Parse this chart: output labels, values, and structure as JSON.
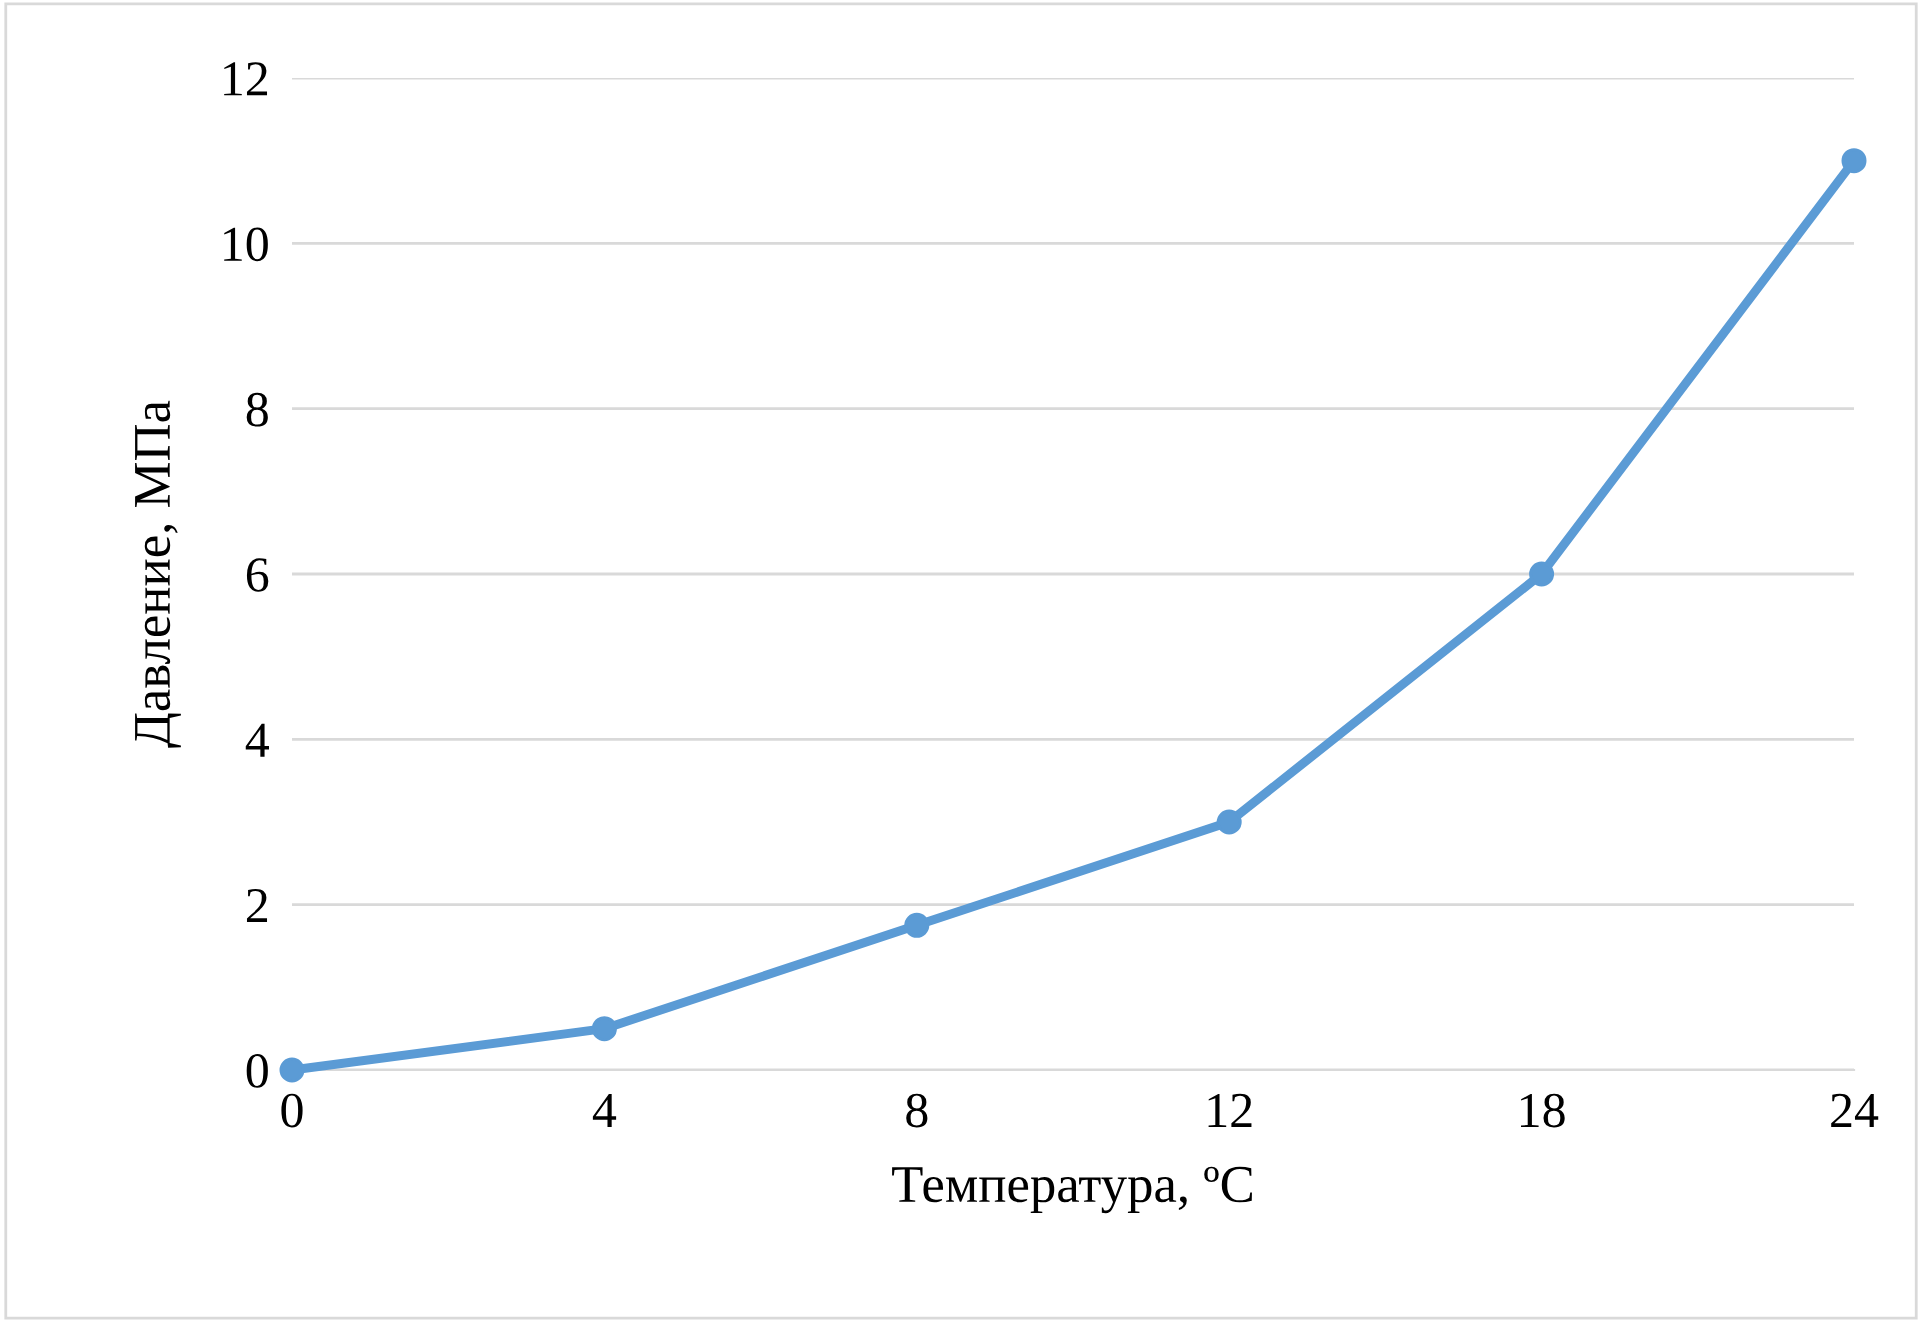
{
  "chart_data": {
    "type": "line",
    "xlabel": "Температура, ºC",
    "ylabel": "Давление, МПа",
    "categories": [
      "0",
      "4",
      "8",
      "12",
      "18",
      "24"
    ],
    "series": [
      {
        "color": "#5b9bd5",
        "values": [
          0,
          0.5,
          1.75,
          3,
          6,
          11
        ]
      }
    ],
    "ylim": [
      0,
      12
    ],
    "yticks": [
      0,
      2,
      4,
      6,
      8,
      10,
      12
    ],
    "grid": "y",
    "marker": "circle",
    "line_style": "solid",
    "legend": false
  }
}
